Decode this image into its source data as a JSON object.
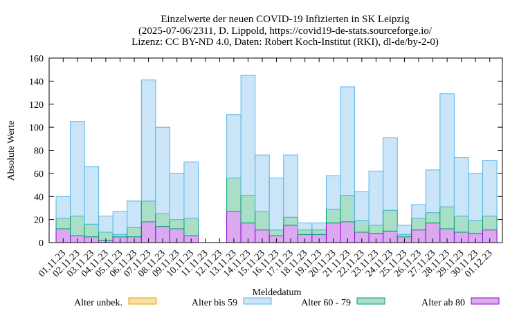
{
  "chart_data": {
    "type": "bar",
    "stacked": true,
    "title_lines": [
      "Einzelwerte der neuen COVID-19 Infizierten in SK Leipzig",
      "(2025-07-06/2311, D. Lippold, https://covid19-de-stats.sourceforge.io/",
      "Lizenz: CC BY-ND 4.0, Daten: Robert Koch-Institut (RKI), dl-de/by-2-0)"
    ],
    "xlabel": "Meldedatum",
    "ylabel": "Absolute Werte",
    "ylim": [
      0,
      160
    ],
    "yticks": [
      0,
      20,
      40,
      60,
      80,
      100,
      120,
      140,
      160
    ],
    "grid": false,
    "legend_position": "bottom",
    "categories": [
      "01.11.23",
      "02.11.23",
      "03.11.23",
      "04.11.23",
      "05.11.23",
      "06.11.23",
      "07.11.23",
      "08.11.23",
      "09.11.23",
      "10.11.23",
      "11.11.23",
      "12.11.23",
      "13.11.23",
      "14.11.23",
      "15.11.23",
      "16.11.23",
      "17.11.23",
      "18.11.23",
      "19.11.23",
      "20.11.23",
      "21.11.23",
      "22.11.23",
      "23.11.23",
      "24.11.23",
      "25.11.23",
      "26.11.23",
      "27.11.23",
      "28.11.23",
      "29.11.23",
      "30.11.23",
      "01.12.23"
    ],
    "series": [
      {
        "name": "Alter ab 80",
        "color": "#dba9f0",
        "stroke": "#9400d3",
        "values": [
          12,
          6,
          5,
          2,
          5,
          5,
          18,
          14,
          12,
          6,
          0,
          0,
          27,
          17,
          11,
          6,
          15,
          7,
          7,
          17,
          18,
          9,
          8,
          10,
          5,
          11,
          17,
          12,
          9,
          8,
          11
        ]
      },
      {
        "name": "Alter 60 - 79",
        "color": "#a8dfc6",
        "stroke": "#009e73",
        "values": [
          9,
          17,
          11,
          7,
          2,
          8,
          18,
          11,
          8,
          15,
          0,
          0,
          29,
          24,
          16,
          5,
          7,
          4,
          4,
          12,
          23,
          10,
          7,
          18,
          2,
          10,
          9,
          19,
          14,
          11,
          12
        ]
      },
      {
        "name": "Alter bis 59",
        "color": "#cae5f7",
        "stroke": "#56b4e9",
        "values": [
          19,
          82,
          50,
          14,
          20,
          23,
          105,
          75,
          40,
          49,
          0,
          0,
          55,
          104,
          49,
          45,
          54,
          6,
          6,
          29,
          94,
          25,
          47,
          63,
          8,
          12,
          37,
          98,
          51,
          41,
          48
        ]
      },
      {
        "name": "Alter unbek.",
        "color": "#fbe0a6",
        "stroke": "#e69f00",
        "values": [
          0,
          0,
          0,
          0,
          0,
          0,
          0,
          0,
          0,
          0,
          0,
          0,
          0,
          0,
          0,
          0,
          0,
          0,
          0,
          0,
          0,
          0,
          0,
          0,
          0,
          0,
          0,
          0,
          0,
          0,
          0
        ]
      }
    ],
    "legend_order": [
      "Alter unbek.",
      "Alter bis 59",
      "Alter 60 - 79",
      "Alter ab 80"
    ]
  }
}
